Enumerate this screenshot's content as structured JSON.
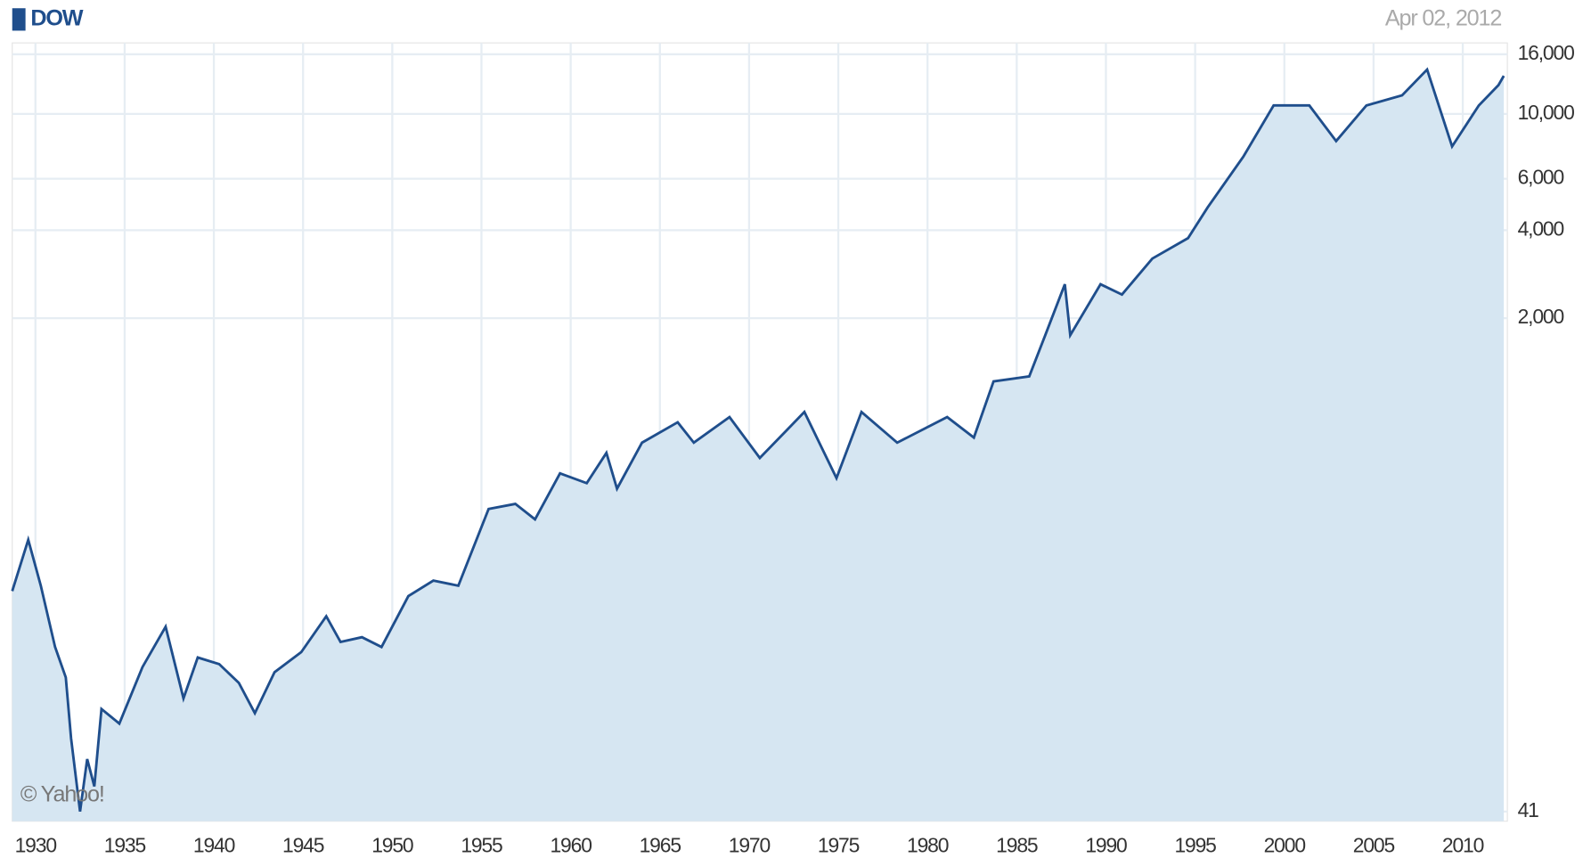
{
  "chart_data": {
    "type": "line",
    "subtitle": "Apr 02, 2012",
    "annotation": "© Yahoo!",
    "x": [
      1928.7,
      1929.6,
      1930.3,
      1931.1,
      1931.7,
      1932.0,
      1932.5,
      1932.9,
      1933.3,
      1933.7,
      1934.7,
      1936.0,
      1937.3,
      1938.3,
      1939.1,
      1940.3,
      1941.4,
      1942.3,
      1943.4,
      1944.9,
      1946.3,
      1947.1,
      1948.3,
      1949.4,
      1950.9,
      1952.3,
      1953.7,
      1955.4,
      1956.9,
      1958.0,
      1959.4,
      1960.9,
      1962.0,
      1962.6,
      1964.0,
      1966.0,
      1966.9,
      1968.9,
      1970.6,
      1973.1,
      1974.9,
      1976.3,
      1978.3,
      1981.1,
      1982.6,
      1983.7,
      1985.7,
      1986.6,
      1987.7,
      1988.0,
      1989.7,
      1990.9,
      1992.6,
      1994.6,
      1995.7,
      1997.7,
      1999.4,
      2001.4,
      2002.9,
      2004.6,
      2006.6,
      2008.0,
      2009.4,
      2010.9,
      2012.0,
      2012.3
    ],
    "series": [
      {
        "name": "DOW",
        "color": "#1f4e8c",
        "fill": "#d6e6f2",
        "values": [
          233,
          349,
          243,
          150,
          118,
          73,
          41,
          62,
          50,
          92,
          82,
          128,
          176,
          100,
          138,
          131,
          113,
          89,
          123,
          144,
          191,
          156,
          162,
          150,
          224,
          253,
          243,
          445,
          463,
          410,
          589,
          545,
          692,
          522,
          750,
          881,
          750,
          918,
          665,
          955,
          567,
          955,
          750,
          918,
          781,
          1216,
          1265,
          1750,
          2613,
          1750,
          2613,
          2410,
          3200,
          3757,
          4786,
          7145,
          10690,
          10690,
          8074,
          10690,
          11580,
          14190,
          7740,
          10690,
          12560,
          13500
        ]
      }
    ],
    "log_scale": true,
    "grid": true,
    "xlim": [
      1928.7,
      2012.5
    ],
    "xticks": [
      1930,
      1935,
      1940,
      1945,
      1950,
      1955,
      1960,
      1965,
      1970,
      1975,
      1980,
      1985,
      1990,
      1995,
      2000,
      2005,
      2010
    ],
    "ylim": [
      38,
      17500
    ],
    "yticks": [
      41,
      {
        "value": 2000,
        "label": "2,000"
      },
      {
        "value": 4000,
        "label": "4,000"
      },
      {
        "value": 6000,
        "label": "6,000"
      },
      {
        "value": 10000,
        "label": "10,000"
      },
      {
        "value": 16000,
        "label": "16,000"
      }
    ]
  }
}
